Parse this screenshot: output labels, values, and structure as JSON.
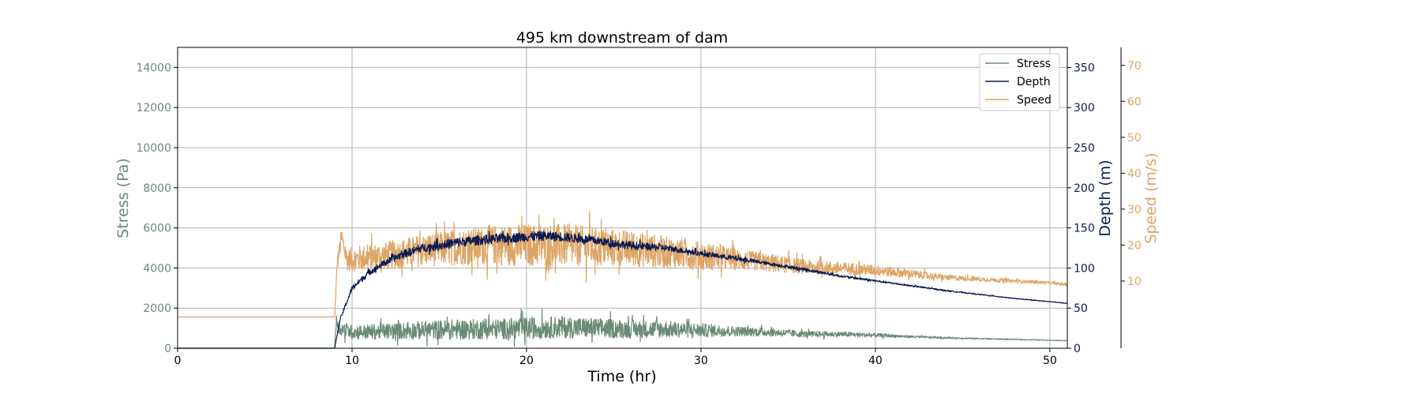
{
  "chart_data": {
    "type": "line",
    "title": "495 km downstream of dam",
    "xlabel": "Time (hr)",
    "xlim": [
      0,
      51
    ],
    "x_ticks": [
      0,
      10,
      20,
      30,
      40,
      50
    ],
    "grid": true,
    "legend_position": "top-right",
    "axes": {
      "stress": {
        "label": "Stress (Pa)",
        "ylim": [
          0,
          15000
        ],
        "ticks": [
          0,
          2000,
          4000,
          6000,
          8000,
          10000,
          12000,
          14000
        ],
        "color": "#6a8b76"
      },
      "depth": {
        "label": "Depth (m)",
        "ylim": [
          0,
          375
        ],
        "ticks": [
          0,
          50,
          100,
          150,
          200,
          250,
          300,
          350
        ],
        "color": "#0c1a52"
      },
      "speed": {
        "label": "Speed (m/s)",
        "ylim": [
          -8.7,
          75
        ],
        "ticks": [
          10,
          20,
          30,
          40,
          50,
          60,
          70
        ],
        "color": "#dda565"
      }
    },
    "series": [
      {
        "name": "Stress",
        "axis": "stress",
        "color": "#6a8b76",
        "x": [
          0,
          9.0,
          9.1,
          9.3,
          10,
          12,
          14,
          16,
          18,
          20,
          22,
          24,
          26,
          28,
          30,
          32,
          34,
          36,
          38,
          40,
          42,
          44,
          46,
          48,
          50,
          51
        ],
        "y": [
          0,
          0,
          1400,
          1000,
          800,
          850,
          900,
          950,
          950,
          1000,
          1050,
          1000,
          950,
          950,
          900,
          850,
          800,
          700,
          700,
          650,
          580,
          520,
          480,
          440,
          400,
          380
        ],
        "noise": [
          0,
          0,
          300,
          400,
          350,
          400,
          450,
          500,
          500,
          550,
          550,
          500,
          450,
          420,
          350,
          250,
          200,
          150,
          130,
          100,
          60,
          40,
          30,
          20,
          15,
          15
        ]
      },
      {
        "name": "Depth",
        "axis": "depth",
        "color": "#0c1a52",
        "x": [
          0,
          9.0,
          9.3,
          10,
          11,
          12,
          13,
          14,
          15,
          16,
          18,
          20,
          21,
          22,
          24,
          26,
          28,
          30,
          32,
          34,
          36,
          38,
          40,
          42,
          44,
          46,
          48,
          50,
          51
        ],
        "y": [
          0,
          0,
          35,
          75,
          95,
          108,
          118,
          125,
          128,
          132,
          136,
          139,
          140,
          139,
          134,
          128,
          125,
          118,
          112,
          105,
          98,
          90,
          84,
          78,
          72,
          67,
          62,
          58,
          56
        ],
        "noise": [
          0,
          0,
          2,
          3,
          4,
          4,
          5,
          5,
          6,
          6,
          6,
          6,
          6,
          6,
          5,
          5,
          4,
          3,
          3,
          2,
          2,
          1.5,
          1.2,
          1,
          0.8,
          0.6,
          0.5,
          0.4,
          0.4
        ]
      },
      {
        "name": "Speed",
        "axis": "speed",
        "color": "#dda565",
        "x": [
          0,
          9.0,
          9.15,
          9.4,
          9.7,
          10,
          12,
          14,
          16,
          18,
          20,
          22,
          24,
          26,
          28,
          30,
          32,
          34,
          36,
          38,
          40,
          42,
          44,
          46,
          48,
          50,
          51
        ],
        "y": [
          0,
          0,
          15,
          22,
          16,
          16,
          17,
          18.5,
          19.5,
          20,
          20,
          20,
          19.5,
          19,
          18,
          17,
          16,
          15,
          14,
          13.5,
          13,
          12,
          11,
          10.5,
          10,
          9.5,
          9
        ],
        "noise": [
          0,
          0,
          2,
          3,
          3,
          3.5,
          4,
          4.5,
          5,
          5.5,
          6,
          6,
          5.5,
          5,
          4.5,
          4,
          3,
          2.5,
          2,
          1.8,
          1.5,
          1.2,
          0.8,
          0.6,
          0.5,
          0.4,
          0.4
        ]
      }
    ]
  }
}
